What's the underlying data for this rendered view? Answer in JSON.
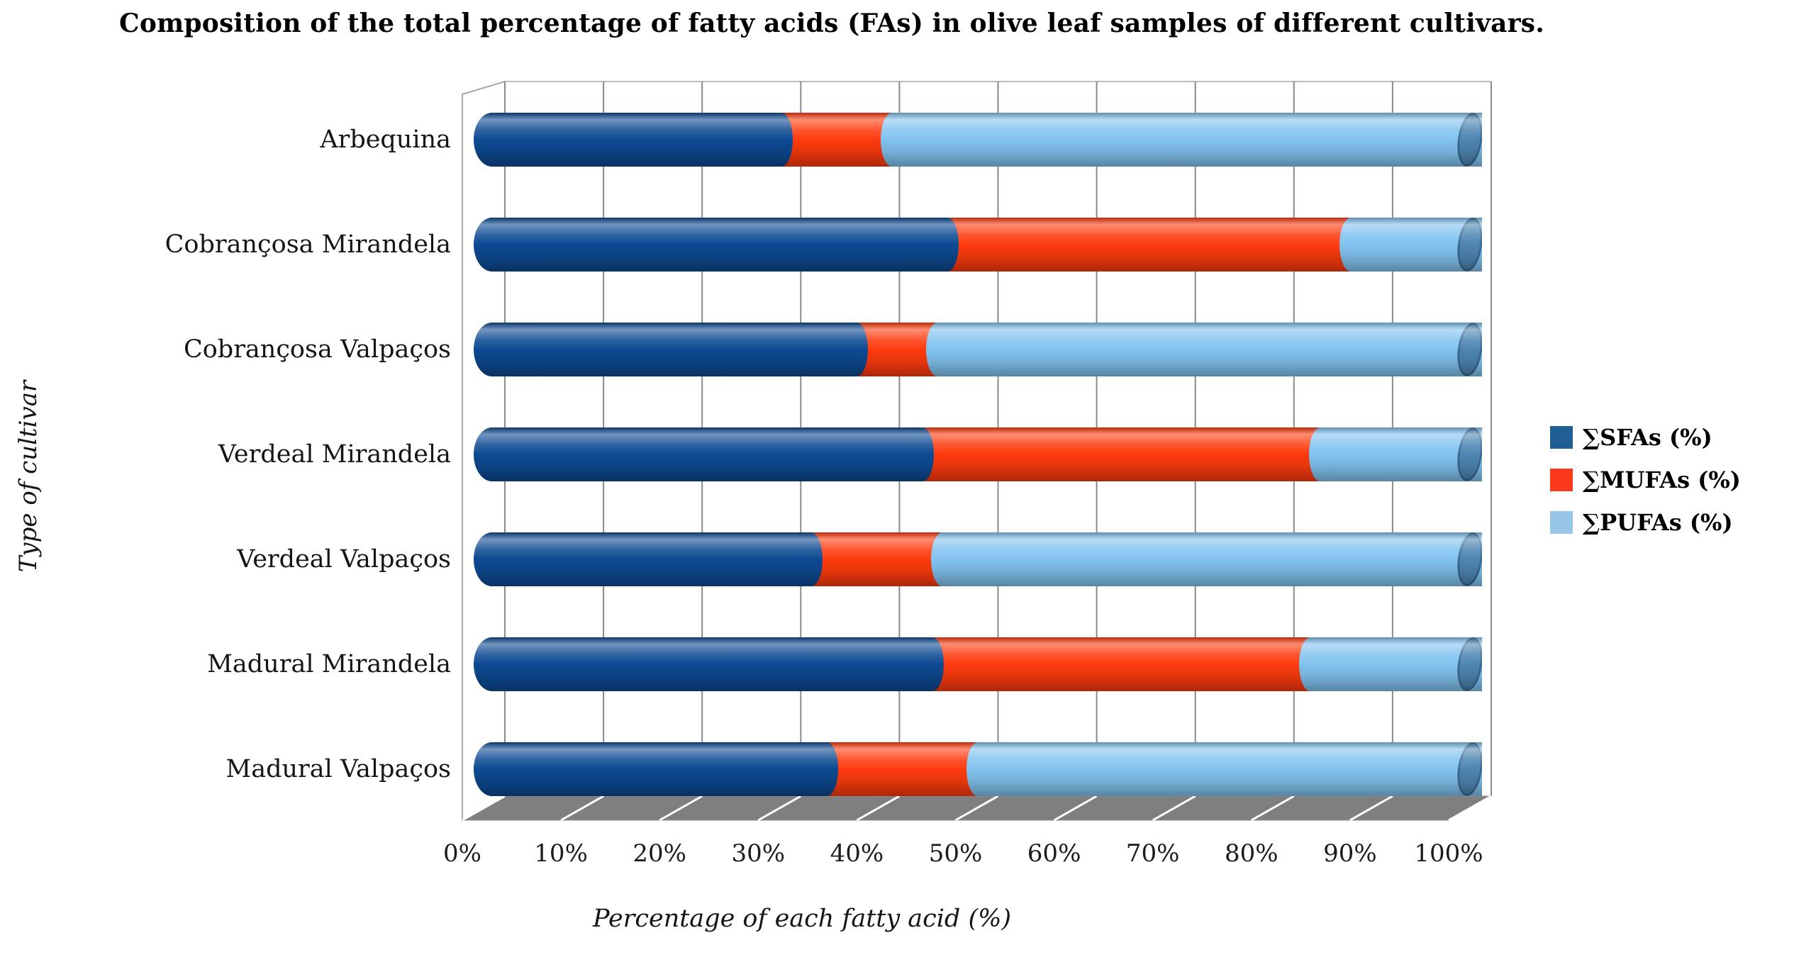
{
  "page": {
    "background": "#ffffff"
  },
  "legend": {
    "position": "right",
    "items": [
      {
        "label": "∑SFAs (%)",
        "swatch_color": "#1f5f94"
      },
      {
        "label": "∑MUFAs (%)",
        "swatch_color": "#fb3a1c"
      },
      {
        "label": "∑PUFAs (%)",
        "swatch_color": "#98c6e9"
      }
    ]
  },
  "chart_data": {
    "type": "bar",
    "subtype": "stacked-horizontal-3d-cylinder",
    "title": "Composition of the total percentage of fatty acids (FAs) in olive leaf samples of different cultivars.",
    "xlabel": "Percentage of each fatty acid (%)",
    "ylabel": "Type of cultivar",
    "units": "%",
    "xlim": [
      0,
      100
    ],
    "x_tick_step": 10,
    "x_tick_labels": [
      "0%",
      "10%",
      "20%",
      "30%",
      "40%",
      "50%",
      "60%",
      "70%",
      "80%",
      "90%",
      "100%"
    ],
    "grid": "vertical-only",
    "legend_position": "right",
    "categories": [
      "Arbequina",
      "Cobrançosa Mirandela",
      "Cobrançosa Valpaços",
      "Verdeal Mirandela",
      "Verdeal Valpaços",
      "Madural Mirandela",
      "Madural Valpaços"
    ],
    "series": [
      {
        "key": "sfa",
        "name": "∑SFAs (%)",
        "color": "#0d4a92",
        "values": [
          30.5,
          47.0,
          38.0,
          44.5,
          33.5,
          45.5,
          35.0
        ]
      },
      {
        "key": "mufa",
        "name": "∑MUFAs (%)",
        "color": "#fe3b0e",
        "values": [
          11.0,
          40.0,
          8.0,
          39.5,
          13.0,
          37.5,
          15.0
        ]
      },
      {
        "key": "pufa",
        "name": "∑PUFAs (%)",
        "color": "#82c3f0",
        "values": [
          58.5,
          13.0,
          54.0,
          16.0,
          53.5,
          17.0,
          50.0
        ]
      }
    ],
    "totals_per_category": [
      100,
      100,
      100,
      100,
      100,
      100,
      100
    ],
    "bar_end_cap_color": "#4e86b2",
    "wall_color": "#ffffff",
    "floor_color": "#7f7f7f",
    "gridline_color": "#8a8a8a"
  }
}
